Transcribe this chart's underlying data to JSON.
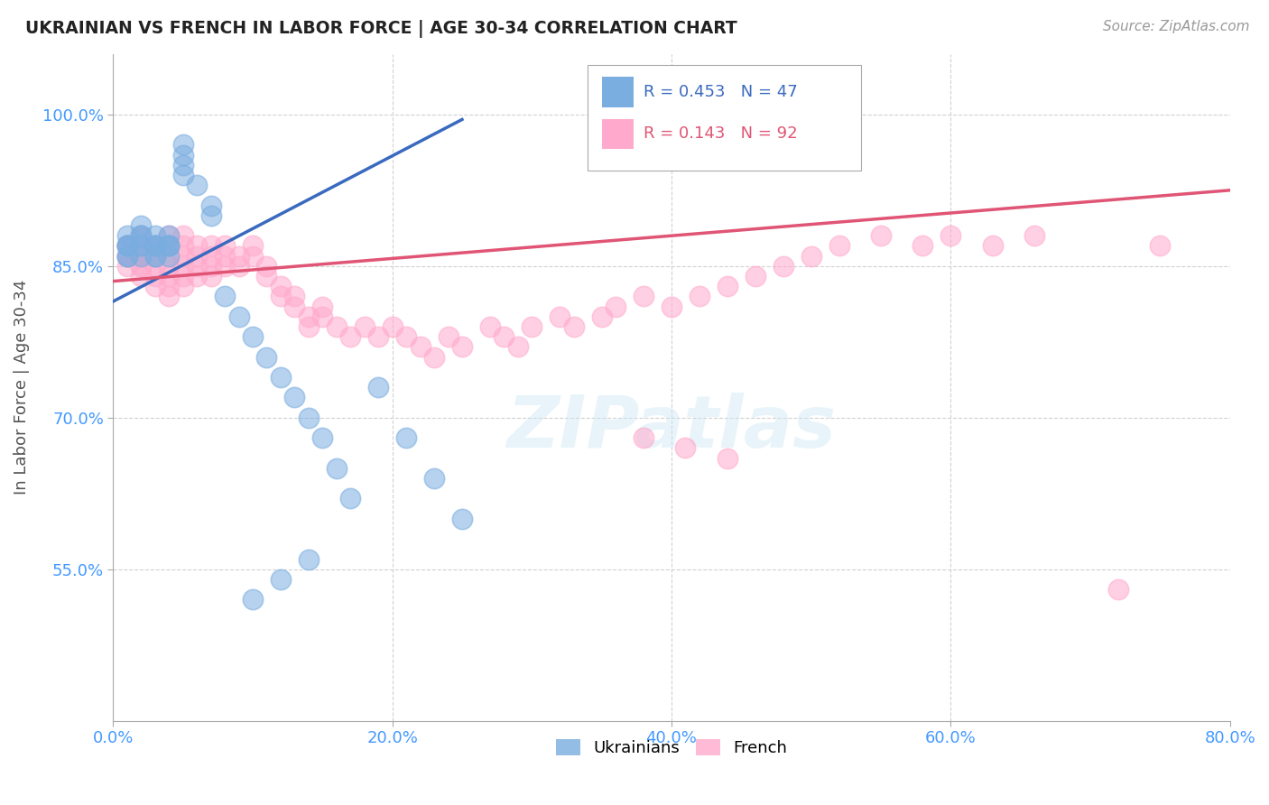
{
  "title": "UKRAINIAN VS FRENCH IN LABOR FORCE | AGE 30-34 CORRELATION CHART",
  "ylabel": "In Labor Force | Age 30-34",
  "source_text": "Source: ZipAtlas.com",
  "xlim": [
    0.0,
    0.8
  ],
  "ylim": [
    0.4,
    1.06
  ],
  "xtick_labels": [
    "0.0%",
    "20.0%",
    "40.0%",
    "60.0%",
    "80.0%"
  ],
  "xtick_values": [
    0.0,
    0.2,
    0.4,
    0.6,
    0.8
  ],
  "ytick_labels": [
    "55.0%",
    "70.0%",
    "85.0%",
    "100.0%"
  ],
  "ytick_values": [
    0.55,
    0.7,
    0.85,
    1.0
  ],
  "legend_ukrainians_label": "Ukrainians",
  "legend_french_label": "French",
  "blue_color": "#7aade0",
  "pink_color": "#ffaacc",
  "blue_line_color": "#3a6abf",
  "pink_line_color": "#e05575",
  "background_color": "#ffffff",
  "grid_color": "#cccccc",
  "watermark_text": "ZIPatlas",
  "ukrainian_x": [
    0.01,
    0.01,
    0.01,
    0.01,
    0.01,
    0.01,
    0.02,
    0.02,
    0.02,
    0.02,
    0.02,
    0.02,
    0.03,
    0.03,
    0.03,
    0.03,
    0.03,
    0.03,
    0.04,
    0.04,
    0.04,
    0.04,
    0.04,
    0.05,
    0.05,
    0.05,
    0.05,
    0.06,
    0.07,
    0.07,
    0.08,
    0.09,
    0.1,
    0.11,
    0.12,
    0.13,
    0.14,
    0.15,
    0.16,
    0.17,
    0.19,
    0.21,
    0.23,
    0.25,
    0.14,
    0.12,
    0.1
  ],
  "ukrainian_y": [
    0.87,
    0.86,
    0.87,
    0.88,
    0.87,
    0.86,
    0.87,
    0.88,
    0.86,
    0.87,
    0.88,
    0.89,
    0.87,
    0.86,
    0.87,
    0.88,
    0.87,
    0.86,
    0.87,
    0.88,
    0.87,
    0.86,
    0.87,
    0.97,
    0.96,
    0.95,
    0.94,
    0.93,
    0.91,
    0.9,
    0.82,
    0.8,
    0.78,
    0.76,
    0.74,
    0.72,
    0.7,
    0.68,
    0.65,
    0.62,
    0.73,
    0.68,
    0.64,
    0.6,
    0.56,
    0.54,
    0.52
  ],
  "french_x": [
    0.01,
    0.01,
    0.01,
    0.01,
    0.01,
    0.02,
    0.02,
    0.02,
    0.02,
    0.02,
    0.02,
    0.02,
    0.02,
    0.03,
    0.03,
    0.03,
    0.03,
    0.03,
    0.04,
    0.04,
    0.04,
    0.04,
    0.04,
    0.04,
    0.04,
    0.05,
    0.05,
    0.05,
    0.05,
    0.05,
    0.05,
    0.06,
    0.06,
    0.06,
    0.06,
    0.07,
    0.07,
    0.07,
    0.07,
    0.08,
    0.08,
    0.08,
    0.09,
    0.09,
    0.1,
    0.1,
    0.11,
    0.11,
    0.12,
    0.12,
    0.13,
    0.13,
    0.14,
    0.14,
    0.15,
    0.15,
    0.16,
    0.17,
    0.18,
    0.19,
    0.2,
    0.21,
    0.22,
    0.23,
    0.24,
    0.25,
    0.27,
    0.28,
    0.29,
    0.3,
    0.32,
    0.33,
    0.35,
    0.36,
    0.38,
    0.4,
    0.42,
    0.44,
    0.46,
    0.48,
    0.5,
    0.52,
    0.55,
    0.58,
    0.6,
    0.38,
    0.41,
    0.44,
    0.63,
    0.66,
    0.72,
    0.75
  ],
  "french_y": [
    0.87,
    0.86,
    0.85,
    0.87,
    0.86,
    0.88,
    0.87,
    0.86,
    0.85,
    0.87,
    0.86,
    0.85,
    0.84,
    0.87,
    0.86,
    0.85,
    0.84,
    0.83,
    0.88,
    0.87,
    0.86,
    0.85,
    0.84,
    0.83,
    0.82,
    0.88,
    0.87,
    0.86,
    0.85,
    0.84,
    0.83,
    0.87,
    0.86,
    0.85,
    0.84,
    0.87,
    0.86,
    0.85,
    0.84,
    0.87,
    0.86,
    0.85,
    0.86,
    0.85,
    0.87,
    0.86,
    0.85,
    0.84,
    0.83,
    0.82,
    0.82,
    0.81,
    0.8,
    0.79,
    0.81,
    0.8,
    0.79,
    0.78,
    0.79,
    0.78,
    0.79,
    0.78,
    0.77,
    0.76,
    0.78,
    0.77,
    0.79,
    0.78,
    0.77,
    0.79,
    0.8,
    0.79,
    0.8,
    0.81,
    0.82,
    0.81,
    0.82,
    0.83,
    0.84,
    0.85,
    0.86,
    0.87,
    0.88,
    0.87,
    0.88,
    0.68,
    0.67,
    0.66,
    0.87,
    0.88,
    0.53,
    0.87
  ],
  "blue_trend_x0": 0.0,
  "blue_trend_x1": 0.25,
  "blue_trend_y0": 0.815,
  "blue_trend_y1": 0.995,
  "pink_trend_x0": 0.0,
  "pink_trend_x1": 0.8,
  "pink_trend_y0": 0.835,
  "pink_trend_y1": 0.925
}
